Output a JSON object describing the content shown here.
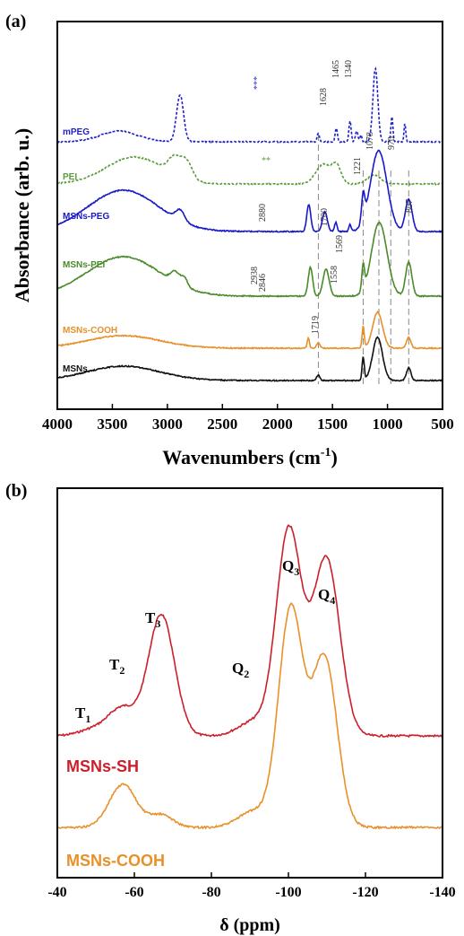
{
  "chart_data": [
    {
      "type": "line",
      "panel_label": "(a)",
      "xlabel": "Wavenumbers (cm",
      "xlabel_sup": "-1",
      "xlabel_close": ")",
      "ylabel": "Absorbance (arb. u.)",
      "xlim": [
        4000,
        500
      ],
      "x_reversed": true,
      "xticks": [
        "4000",
        "3500",
        "3000",
        "2500",
        "2000",
        "1500",
        "1000",
        "500"
      ],
      "xtick_values": [
        4000,
        3500,
        3000,
        2500,
        2000,
        1500,
        1000,
        500
      ],
      "series": [
        {
          "name": "mPEG",
          "color": "#1f1fc8",
          "dash": true
        },
        {
          "name": "PEI",
          "color": "#5a9a3a",
          "dash": true
        },
        {
          "name": "MSNs-PEG",
          "color": "#1818c8",
          "dash": false
        },
        {
          "name": "MSNs-PEI",
          "color": "#4a8a2a",
          "dash": false
        },
        {
          "name": "MSNs-COOH",
          "color": "#e8902a",
          "dash": false
        },
        {
          "name": "MSNs",
          "color": "#111111",
          "dash": false
        }
      ],
      "reference_lines": [
        1628,
        1221,
        1078,
        970,
        807
      ],
      "annotations": [
        {
          "text": "***",
          "color": "#1f1fc8"
        },
        {
          "text": "1628",
          "color": "#333333"
        },
        {
          "text": "1465",
          "color": "#333333"
        },
        {
          "text": "1340",
          "color": "#333333"
        },
        {
          "text": "**",
          "color": "#5a9a3a"
        },
        {
          "text": "1221",
          "color": "#333333"
        },
        {
          "text": "1078",
          "color": "#333333"
        },
        {
          "text": "970",
          "color": "#333333"
        },
        {
          "text": "2880",
          "color": "#333333"
        },
        {
          "text": "1700",
          "color": "#333333"
        },
        {
          "text": "1569",
          "color": "#333333"
        },
        {
          "text": "807",
          "color": "#333333"
        },
        {
          "text": "2938",
          "color": "#333333"
        },
        {
          "text": "2846",
          "color": "#333333"
        },
        {
          "text": "1558",
          "color": "#333333"
        },
        {
          "text": "1719",
          "color": "#333333"
        }
      ]
    },
    {
      "type": "line",
      "panel_label": "(b)",
      "xlabel": "δ (ppm)",
      "xlim": [
        -40,
        -140
      ],
      "x_reversed": true,
      "xticks": [
        "-40",
        "-60",
        "-80",
        "-100",
        "-120",
        "-140"
      ],
      "xtick_values": [
        -40,
        -60,
        -80,
        -100,
        -120,
        -140
      ],
      "series": [
        {
          "name": "MSNs-SH",
          "color": "#cc1f2a"
        },
        {
          "name": "MSNs-COOH",
          "color": "#e8902a"
        }
      ],
      "peak_labels": [
        {
          "main": "T",
          "sub": "1"
        },
        {
          "main": "T",
          "sub": "2"
        },
        {
          "main": "T",
          "sub": "3"
        },
        {
          "main": "Q",
          "sub": "2"
        },
        {
          "main": "Q",
          "sub": "3"
        },
        {
          "main": "Q",
          "sub": "4"
        }
      ]
    }
  ]
}
